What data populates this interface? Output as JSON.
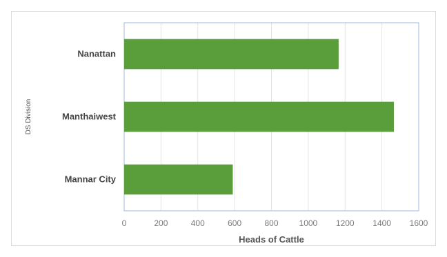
{
  "chart_data": {
    "type": "bar",
    "orientation": "horizontal",
    "categories": [
      "Nanattan",
      "Manthaiwest",
      "Mannar City"
    ],
    "values": [
      1165,
      1465,
      590
    ],
    "xlabel": "Heads of Cattle",
    "ylabel": "DS Division",
    "xlim": [
      0,
      1600
    ],
    "xticks": [
      "0",
      "200",
      "400",
      "600",
      "800",
      "1000",
      "1200",
      "1400",
      "1600"
    ],
    "grid": true,
    "legend": "none",
    "colors": {
      "bar": "#5a9e3c",
      "grid": "#e3e3e3",
      "plot_border": "#9db9dc"
    }
  }
}
